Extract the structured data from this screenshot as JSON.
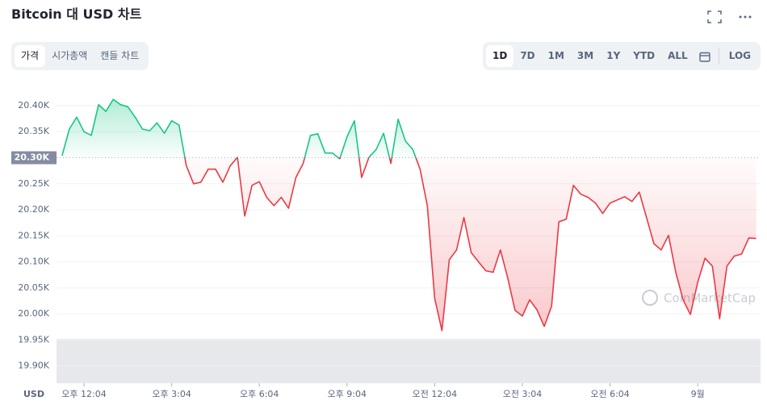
{
  "header": {
    "title": "Bitcoin 대 USD 차트"
  },
  "view_tabs": [
    {
      "label": "가격",
      "selected": true
    },
    {
      "label": "시가총액"
    },
    {
      "label": "캔들 차트"
    }
  ],
  "ranges": [
    {
      "label": "1D",
      "selected": true
    },
    {
      "label": "7D"
    },
    {
      "label": "1M"
    },
    {
      "label": "3M"
    },
    {
      "label": "1Y"
    },
    {
      "label": "YTD"
    },
    {
      "label": "ALL"
    }
  ],
  "scale_toggle": "LOG",
  "chart_data": {
    "type": "line",
    "x": [
      -0.75,
      -0.5,
      -0.25,
      0,
      0.25,
      0.5,
      0.75,
      1,
      1.25,
      1.5,
      1.75,
      2,
      2.25,
      2.5,
      2.75,
      3,
      3.25,
      3.5,
      3.75,
      4,
      4.25,
      4.5,
      4.75,
      5,
      5.25,
      5.5,
      5.75,
      6,
      6.25,
      6.5,
      6.75,
      7,
      7.25,
      7.5,
      7.75,
      8,
      8.25,
      8.5,
      8.75,
      9,
      9.25,
      9.5,
      9.75,
      10,
      10.25,
      10.5,
      10.75,
      11,
      11.25,
      11.5,
      11.75,
      12,
      12.25,
      12.5,
      12.75,
      13,
      13.25,
      13.5,
      13.75,
      14,
      14.25,
      14.5,
      14.75,
      15,
      15.25,
      15.5,
      15.75,
      16,
      16.25,
      16.5,
      16.75,
      17,
      17.25,
      17.5,
      17.75,
      18,
      18.25,
      18.5,
      18.75,
      19,
      19.25,
      19.5,
      19.75,
      20,
      20.25,
      20.5,
      20.75,
      21,
      21.25,
      21.5,
      21.75,
      22,
      22.25,
      22.5,
      22.75,
      23
    ],
    "values": [
      20304,
      20355,
      20378,
      20350,
      20343,
      20402,
      20389,
      20412,
      20402,
      20398,
      20378,
      20355,
      20352,
      20367,
      20347,
      20371,
      20363,
      20285,
      20250,
      20253,
      20278,
      20278,
      20253,
      20284,
      20301,
      20188,
      20247,
      20254,
      20224,
      20208,
      20224,
      20203,
      20262,
      20289,
      20343,
      20346,
      20309,
      20309,
      20298,
      20340,
      20371,
      20262,
      20301,
      20316,
      20347,
      20289,
      20374,
      20332,
      20316,
      20278,
      20208,
      20030,
      19968,
      20104,
      20123,
      20185,
      20118,
      20100,
      20083,
      20080,
      20123,
      20069,
      20007,
      19996,
      20027,
      20008,
      19976,
      20015,
      20177,
      20182,
      20247,
      20230,
      20224,
      20213,
      20193,
      20213,
      20219,
      20225,
      20216,
      20234,
      20185,
      20135,
      20123,
      20151,
      20080,
      20027,
      19999,
      20061,
      20107,
      20092,
      19991,
      20092,
      20111,
      20115,
      20146,
      20145
    ],
    "color_up": "#16c784",
    "color_down": "#ea3943",
    "baseline": {
      "value": 20300,
      "label": "20.30K"
    },
    "xlim": [
      -0.94,
      23.15
    ],
    "ylim": [
      19867,
      20417
    ],
    "yticks": [
      {
        "value": 20400,
        "label": "20.40K"
      },
      {
        "value": 20350,
        "label": "20.35K"
      },
      {
        "value": 20250,
        "label": "20.25K"
      },
      {
        "value": 20200,
        "label": "20.20K"
      },
      {
        "value": 20150,
        "label": "20.15K"
      },
      {
        "value": 20100,
        "label": "20.10K"
      },
      {
        "value": 20050,
        "label": "20.05K"
      },
      {
        "value": 20000,
        "label": "20.00K"
      },
      {
        "value": 19950,
        "label": "19.95K"
      },
      {
        "value": 19900,
        "label": "19.90K"
      }
    ],
    "xticks": [
      {
        "value": 0,
        "label": "오후 12:04"
      },
      {
        "value": 3,
        "label": "오후 3:04"
      },
      {
        "value": 6,
        "label": "오후 6:04"
      },
      {
        "value": 9,
        "label": "오후 9:04"
      },
      {
        "value": 12,
        "label": "오전 12:04"
      },
      {
        "value": 15,
        "label": "오전 3:04"
      },
      {
        "value": 18,
        "label": "오전 6:04"
      },
      {
        "value": 21,
        "label": "9월"
      }
    ],
    "y_unit_label": "USD",
    "watermark": "CoinMarketCap",
    "grid": true
  }
}
